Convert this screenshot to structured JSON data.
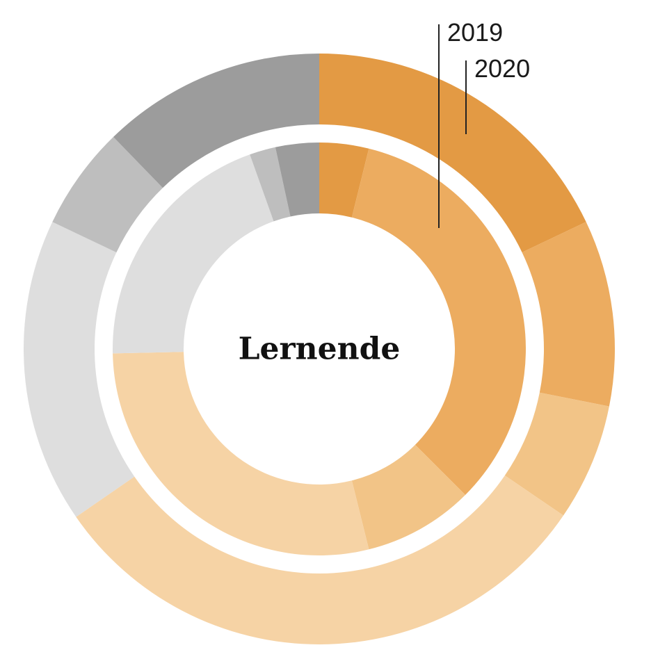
{
  "chart_data": {
    "type": "pie",
    "style": "nested-donut",
    "center_label": "Lernende",
    "legend": "none",
    "series": [
      {
        "name": "2019",
        "ring": "inner",
        "values": [
          3.4,
          29.6,
          7.6,
          25.1,
          17.5,
          1.8,
          3.0
        ],
        "colors": [
          "#E39A44",
          "#ECAC60",
          "#F2C487",
          "#F6D3A5",
          "#DEDEDE",
          "#BEBEBE",
          "#9C9C9C"
        ]
      },
      {
        "name": "2020",
        "ring": "outer",
        "values": [
          19.0,
          10.8,
          6.8,
          32.7,
          17.7,
          6.0,
          13.0
        ],
        "colors": [
          "#E39A44",
          "#ECAC60",
          "#F2C487",
          "#F6D3A5",
          "#DEDEDE",
          "#BEBEBE",
          "#9C9C9C"
        ]
      }
    ]
  }
}
